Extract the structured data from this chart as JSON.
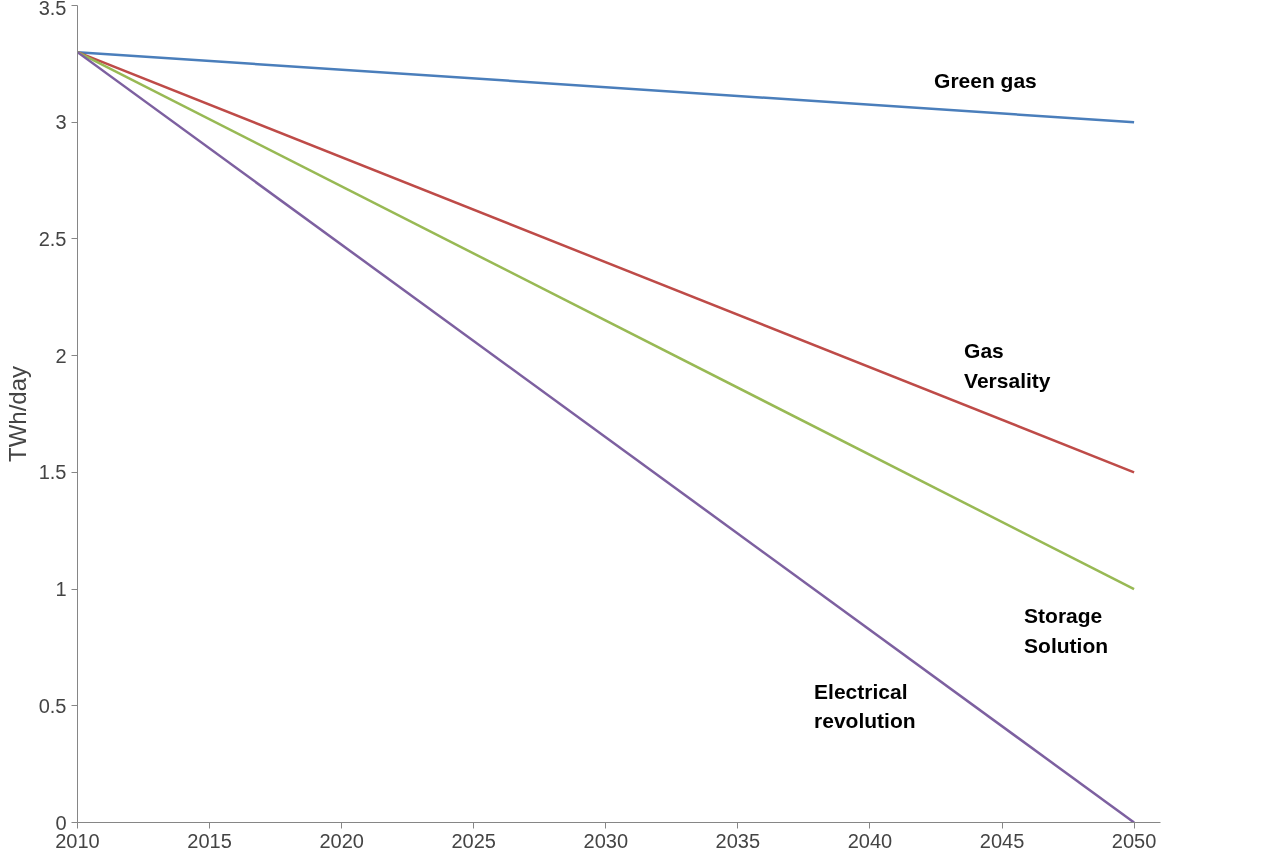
{
  "chart_data": {
    "type": "line",
    "ylabel": "TWh/day",
    "x": [
      2010,
      2050
    ],
    "xlim": [
      2010,
      2051
    ],
    "xticks": [
      2010,
      2015,
      2020,
      2025,
      2030,
      2035,
      2040,
      2045,
      2050
    ],
    "ylim": [
      0,
      3.5
    ],
    "yticks": [
      0,
      0.5,
      1,
      1.5,
      2,
      2.5,
      3,
      3.5
    ],
    "grid": false,
    "marker": "none",
    "series": [
      {
        "name": "Green gas",
        "color": "#4a7ebb",
        "values": [
          3.3,
          3.0
        ]
      },
      {
        "name": "Gas Versality",
        "color": "#be4b48",
        "values": [
          3.3,
          1.5
        ]
      },
      {
        "name": "Storage Solution",
        "color": "#98b954",
        "values": [
          3.3,
          1.0
        ]
      },
      {
        "name": "Electrical revolution",
        "color": "#7d60a0",
        "values": [
          3.3,
          0
        ]
      }
    ]
  }
}
